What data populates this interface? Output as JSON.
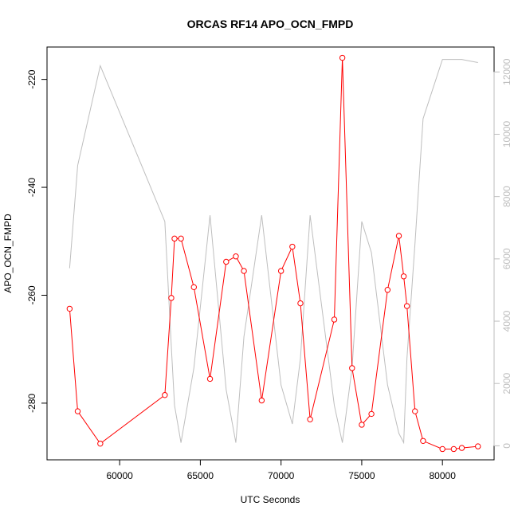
{
  "chart_data": {
    "type": "line",
    "title": "ORCAS RF14 APO_OCN_FMPD",
    "xlabel": "UTC Seconds",
    "ylabel": "APO_OCN_FMPD",
    "xlim": [
      55500,
      83200
    ],
    "ylim": [
      -290.5,
      -214.0
    ],
    "y2lim": [
      -450,
      12800
    ],
    "grid": false,
    "x_ticks": [
      60000,
      65000,
      70000,
      75000,
      80000
    ],
    "y_ticks": [
      -280,
      -260,
      -240,
      -220
    ],
    "y2_ticks": [
      0,
      2000,
      4000,
      6000,
      8000,
      10000,
      12000
    ],
    "series": [
      {
        "axis": "left",
        "color": "#ff0000",
        "marker": "open-circle",
        "x": [
          56900,
          57400,
          58800,
          62800,
          63200,
          63400,
          63800,
          64600,
          65600,
          66600,
          67200,
          67700,
          68800,
          70000,
          70700,
          71200,
          71800,
          73300,
          73800,
          74400,
          75000,
          75600,
          76600,
          77300,
          77600,
          77800,
          78300,
          78800,
          80000,
          80700,
          81200,
          82200
        ],
        "values": [
          -262.5,
          -281.5,
          -287.5,
          -278.5,
          -260.5,
          -249.5,
          -249.5,
          -258.5,
          -275.5,
          -253.8,
          -252.8,
          -255.5,
          -279.5,
          -255.5,
          -251.0,
          -261.5,
          -283.0,
          -264.5,
          -216.0,
          -273.5,
          -284.0,
          -282.0,
          -259.0,
          -249.0,
          -256.5,
          -262.0,
          -281.5,
          -287.0,
          -288.5,
          -288.5,
          -288.3,
          -288.0
        ]
      },
      {
        "axis": "right",
        "color": "#bebebe",
        "marker": "none",
        "x": [
          56900,
          57400,
          58800,
          62800,
          63200,
          63400,
          63800,
          64600,
          65600,
          66600,
          67200,
          67700,
          68800,
          70000,
          70700,
          71200,
          71800,
          73300,
          73800,
          74400,
          75000,
          75600,
          76600,
          77300,
          77600,
          77800,
          78300,
          78800,
          80000,
          80700,
          81200,
          82200
        ],
        "values": [
          5700,
          9000,
          12200,
          7200,
          3200,
          1300,
          100,
          2500,
          7400,
          1800,
          100,
          3500,
          7400,
          1950,
          700,
          2800,
          7400,
          1300,
          100,
          2500,
          7200,
          6200,
          1950,
          400,
          100,
          2800,
          6500,
          10500,
          12400,
          12400,
          12400,
          12300
        ]
      }
    ]
  }
}
